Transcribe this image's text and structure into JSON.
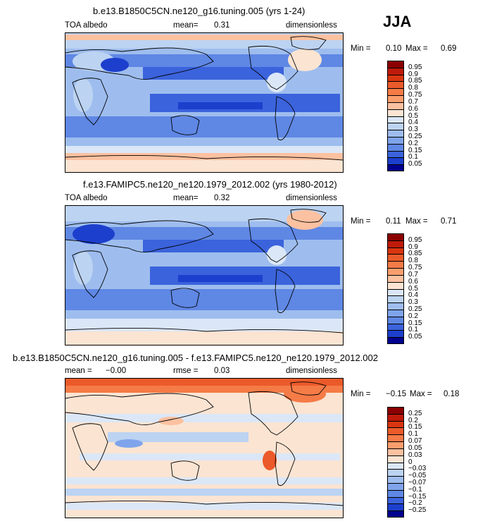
{
  "season": "JJA",
  "panels": [
    {
      "title": "b.e13.B1850C5CN.ne120_g16.tuning.005 (yrs 1-24)",
      "variable": "TOA albedo",
      "stat1_label": "mean=",
      "stat1_value": "0.31",
      "stat2_label": "",
      "stat2_value": "",
      "units": "dimensionless",
      "min_label": "Min =",
      "min_value": "0.10",
      "max_label": "Max =",
      "max_value": "0.69",
      "colorbar_labels": [
        "0.95",
        "0.9",
        "0.85",
        "0.8",
        "0.75",
        "0.7",
        "0.6",
        "0.5",
        "0.4",
        "0.3",
        "0.25",
        "0.2",
        "0.15",
        "0.1",
        "0.05"
      ]
    },
    {
      "title": "f.e13.FAMIPC5.ne120_ne120.1979_2012.002 (yrs 1980-2012)",
      "variable": "TOA albedo",
      "stat1_label": "mean=",
      "stat1_value": "0.32",
      "stat2_label": "",
      "stat2_value": "",
      "units": "dimensionless",
      "min_label": "Min =",
      "min_value": "0.11",
      "max_label": "Max =",
      "max_value": "0.71",
      "colorbar_labels": [
        "0.95",
        "0.9",
        "0.85",
        "0.8",
        "0.75",
        "0.7",
        "0.6",
        "0.5",
        "0.4",
        "0.3",
        "0.25",
        "0.2",
        "0.15",
        "0.1",
        "0.05"
      ]
    },
    {
      "title": "b.e13.B1850C5CN.ne120_g16.tuning.005 - f.e13.FAMIPC5.ne120_ne120.1979_2012.002",
      "variable": "",
      "stat1_label": "mean =",
      "stat1_value": "−0.00",
      "stat2_label": "rmse =",
      "stat2_value": "0.03",
      "units": "dimensionless",
      "min_label": "Min =",
      "min_value": "−0.15",
      "max_label": "Max =",
      "max_value": "0.18",
      "colorbar_labels": [
        "0.25",
        "0.2",
        "0.15",
        "0.1",
        "0.07",
        "0.05",
        "0.03",
        "0",
        "−0.03",
        "−0.05",
        "−0.07",
        "−0.1",
        "−0.15",
        "−0.2",
        "−0.25"
      ]
    }
  ],
  "colors": {
    "scale16": [
      "#8b0000",
      "#bf1a0a",
      "#d9360f",
      "#eb5a2a",
      "#f57b47",
      "#fa9e6e",
      "#fcc1a0",
      "#fbe4d2",
      "#dbe7f7",
      "#bcd3f2",
      "#9ebdee",
      "#7fa4eb",
      "#5f87e4",
      "#3b63dc",
      "#1c3fcd",
      "#00008e"
    ]
  }
}
